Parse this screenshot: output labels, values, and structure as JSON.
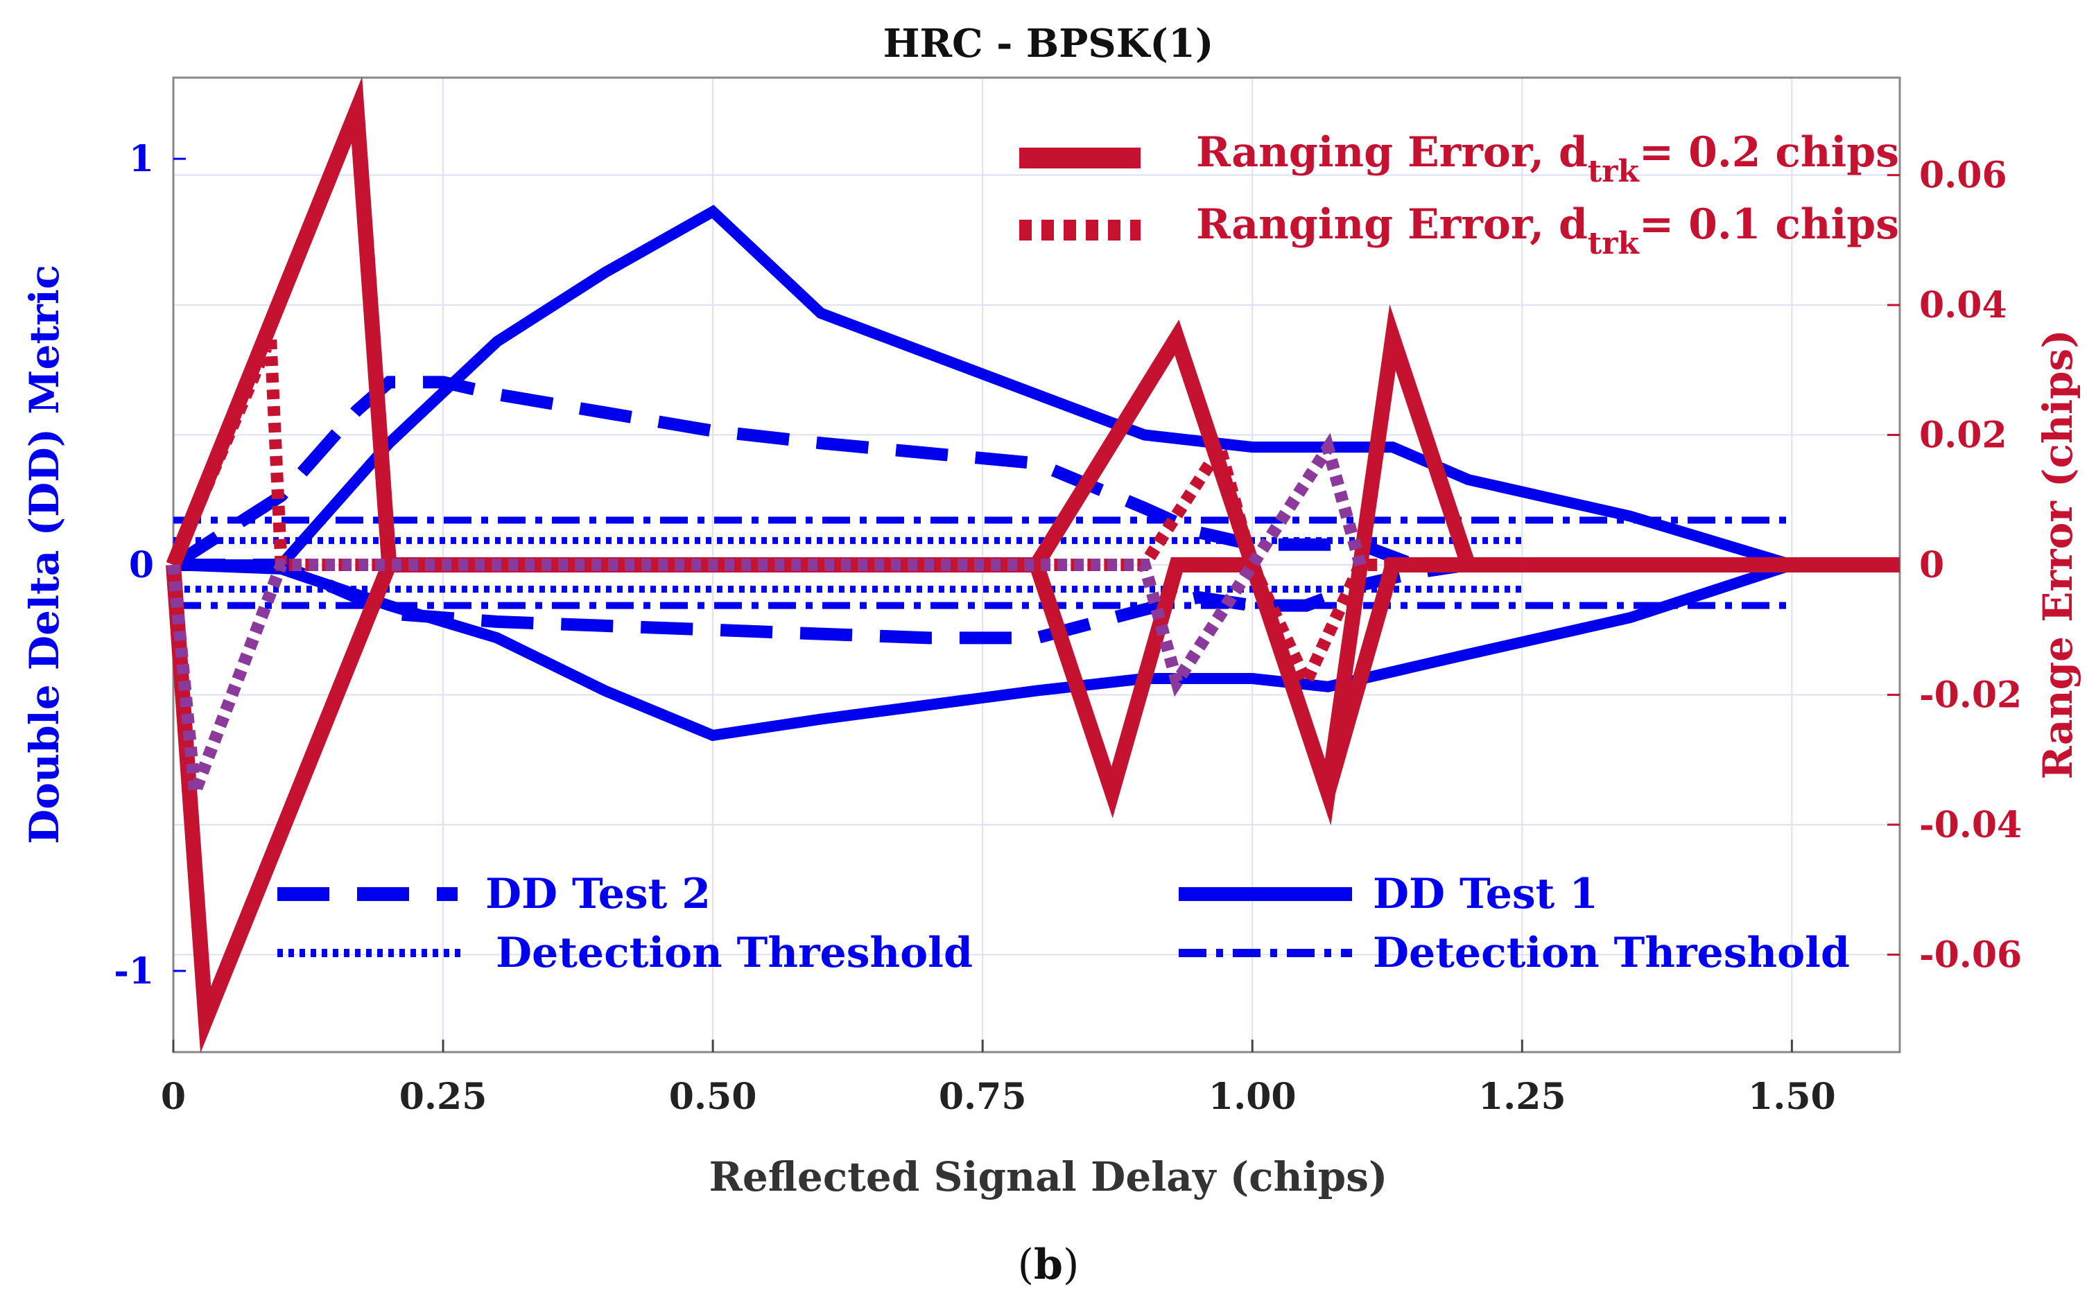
{
  "chart_data": {
    "type": "line",
    "title": "HRC - BPSK(1)",
    "xlabel": "Reflected Signal Delay (chips)",
    "ylabel_left": "Double Delta (DD) Metric",
    "ylabel_right": "Range Error (chips)",
    "caption_letter": "b",
    "xlim": [
      0,
      1.6
    ],
    "ylim_left": [
      -1.2,
      1.2
    ],
    "ylim_right": [
      -0.075,
      0.075
    ],
    "x_ticks": [
      {
        "value": 0,
        "label": "0"
      },
      {
        "value": 0.25,
        "label": "0.25"
      },
      {
        "value": 0.5,
        "label": "0.50"
      },
      {
        "value": 0.75,
        "label": "0.75"
      },
      {
        "value": 1.0,
        "label": "1.00"
      },
      {
        "value": 1.25,
        "label": "1.25"
      },
      {
        "value": 1.5,
        "label": "1.50"
      }
    ],
    "y_left_ticks": [
      {
        "value": 1,
        "label": "1"
      },
      {
        "value": 0,
        "label": "0"
      },
      {
        "value": -1,
        "label": "-1"
      }
    ],
    "y_right_ticks": [
      {
        "value": 0.06,
        "label": "0.06"
      },
      {
        "value": 0.04,
        "label": "0.04"
      },
      {
        "value": 0.02,
        "label": "0.02"
      },
      {
        "value": 0,
        "label": "0"
      },
      {
        "value": -0.02,
        "label": "-0.02"
      },
      {
        "value": -0.04,
        "label": "-0.04"
      },
      {
        "value": -0.06,
        "label": "-0.06"
      }
    ],
    "legend": {
      "range_02": {
        "pre": "Ranging Error, d",
        "sub": "trk",
        "post": "= 0.2 chips"
      },
      "range_01": {
        "pre": "Ranging Error, d",
        "sub": "trk",
        "post": "= 0.1 chips"
      },
      "dd_test2": "DD Test 2",
      "dd_test1": "DD Test 1",
      "thr_dotted": "Detection Threshold",
      "thr_dashdot": "Detection Threshold"
    },
    "series": [
      {
        "name": "DD Test 1 (upper)",
        "axis": "left",
        "style": "solid",
        "color": "#0000ee",
        "x": [
          0,
          0.03,
          0.1,
          0.2,
          0.3,
          0.4,
          0.5,
          0.6,
          0.8,
          0.9,
          1.0,
          1.13,
          1.2,
          1.35,
          1.5,
          1.6
        ],
        "y": [
          0,
          0.0,
          0.0,
          0.3,
          0.55,
          0.72,
          0.87,
          0.62,
          0.42,
          0.32,
          0.29,
          0.29,
          0.21,
          0.12,
          0.0,
          0.0
        ]
      },
      {
        "name": "DD Test 1 (lower)",
        "axis": "left",
        "style": "solid",
        "color": "#0000ee",
        "x": [
          0,
          0.1,
          0.2,
          0.3,
          0.4,
          0.5,
          0.6,
          0.8,
          0.9,
          1.0,
          1.07,
          1.2,
          1.35,
          1.5,
          1.6
        ],
        "y": [
          0,
          -0.01,
          -0.1,
          -0.18,
          -0.31,
          -0.42,
          -0.38,
          -0.31,
          -0.28,
          -0.28,
          -0.3,
          -0.22,
          -0.13,
          0.0,
          0.0
        ]
      },
      {
        "name": "DD Test 2 (upper)",
        "axis": "left",
        "style": "dashed",
        "color": "#0000ee",
        "x": [
          0,
          0.1,
          0.17,
          0.2,
          0.25,
          0.3,
          0.5,
          0.6,
          0.8,
          0.9,
          0.95,
          1.0,
          1.05,
          1.1,
          1.15,
          1.2,
          1.6
        ],
        "y": [
          0,
          0.17,
          0.38,
          0.45,
          0.45,
          0.42,
          0.33,
          0.3,
          0.25,
          0.14,
          0.08,
          0.05,
          0.05,
          0.05,
          0.0,
          0.0,
          0.0
        ]
      },
      {
        "name": "DD Test 2 (lower)",
        "axis": "left",
        "style": "dashed",
        "color": "#0000ee",
        "x": [
          0,
          0.1,
          0.17,
          0.2,
          0.3,
          0.4,
          0.5,
          0.6,
          0.7,
          0.8,
          0.9,
          0.95,
          1.0,
          1.05,
          1.1,
          1.15,
          1.2,
          1.6
        ],
        "y": [
          0,
          0.0,
          -0.08,
          -0.12,
          -0.14,
          -0.15,
          -0.16,
          -0.17,
          -0.18,
          -0.18,
          -0.11,
          -0.08,
          -0.1,
          -0.1,
          -0.05,
          -0.02,
          0.0,
          0.0
        ]
      },
      {
        "name": "Detection Threshold (dotted)",
        "axis": "left",
        "style": "dotted",
        "color": "#0000ee",
        "x": [
          0,
          1.25
        ],
        "y_pos": 0.06,
        "y_neg": -0.06
      },
      {
        "name": "Detection Threshold (dash-dot)",
        "axis": "left",
        "style": "dashdot",
        "color": "#0000ee",
        "x": [
          0,
          1.5
        ],
        "y_pos": 0.11,
        "y_neg": -0.1
      },
      {
        "name": "Ranging Error d_trk=0.2 (upper)",
        "axis": "right",
        "style": "solid",
        "color": "#c41230",
        "x": [
          0,
          0.17,
          0.2,
          0.8,
          0.93,
          1.0,
          1.07,
          1.13,
          1.2,
          1.6
        ],
        "y": [
          0,
          0.07,
          0.0,
          0.0,
          0.035,
          0.0,
          -0.035,
          0.035,
          0.0,
          0.0
        ]
      },
      {
        "name": "Ranging Error d_trk=0.2 (lower)",
        "axis": "right",
        "style": "solid",
        "color": "#c41230",
        "x": [
          0,
          0.03,
          0.2,
          0.8,
          0.87,
          0.93,
          1.0,
          1.07,
          1.13,
          1.2
        ],
        "y": [
          0,
          -0.07,
          0.0,
          0.0,
          -0.035,
          0.0,
          0.0,
          -0.035,
          0.0,
          0.0
        ]
      },
      {
        "name": "Ranging Error d_trk=0.1 (upper)",
        "axis": "right",
        "style": "dotted",
        "color": "#c41230",
        "x": [
          0,
          0.09,
          0.1,
          0.9,
          0.97,
          1.0,
          1.05,
          1.1,
          1.6
        ],
        "y": [
          0,
          0.035,
          0.0,
          0.0,
          0.018,
          0.0,
          -0.018,
          0.0,
          0.0
        ]
      },
      {
        "name": "Ranging Error d_trk=0.1 (lower)",
        "axis": "right",
        "style": "dotted",
        "color": "#8b3a9b",
        "x": [
          0,
          0.02,
          0.1,
          0.9,
          0.93,
          1.0,
          1.07,
          1.1
        ],
        "y": [
          0,
          -0.035,
          0.0,
          0.0,
          -0.018,
          0.0,
          0.018,
          0.0
        ]
      }
    ]
  }
}
